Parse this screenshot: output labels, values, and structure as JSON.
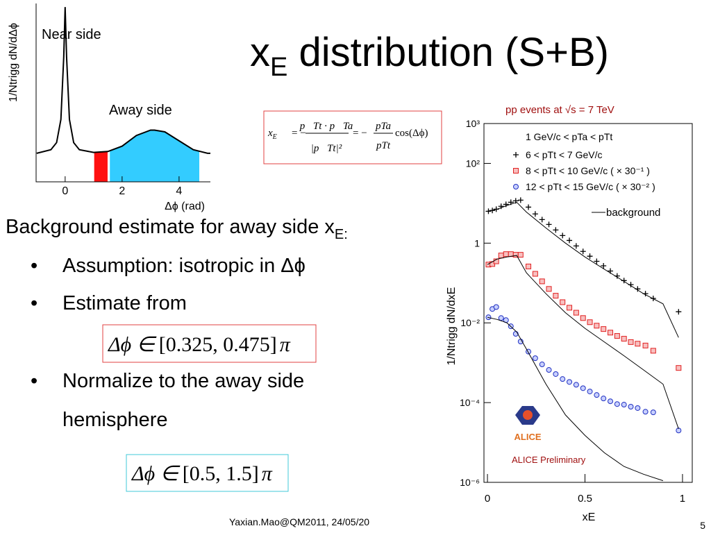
{
  "title": [
    "x",
    "E",
    " distribution (S+B)"
  ],
  "intro": [
    "Background estimate for away side x",
    "E:"
  ],
  "bullets": [
    "Assumption: isotropic in Δϕ",
    "Estimate from",
    "Normalize to the away side",
    "hemisphere"
  ],
  "formula1": {
    "lhs": "x",
    "lhs_sub": "E",
    "eq": "= −",
    "num1": "p⃗Tt · p⃗Ta",
    "den1": "|p⃗Tt|²",
    "num2": "pTa",
    "den2": "pTt",
    "rhs": "cos(Δϕ)"
  },
  "formula2": {
    "lhs": "Δϕ ∈",
    "interval": "[0.325, 0.475]",
    "rhs": "π"
  },
  "formula3": {
    "lhs": "Δϕ ∈",
    "interval": "[0.5, 1.5]",
    "rhs": "π"
  },
  "footer": "Yaxian.Mao@QM2011, 24/05/20",
  "page_number": "5",
  "chart_data": [
    {
      "type": "line",
      "xlabel": "Δϕ (rad)",
      "ylabel": "1/Ntrigg dN/dΔϕ",
      "annotations": [
        "Near side",
        "Away side"
      ],
      "x": [
        -1,
        -0.5,
        -0.3,
        -0.15,
        -0.05,
        0,
        0.05,
        0.15,
        0.3,
        0.5,
        1,
        1.5,
        2,
        2.5,
        3,
        3.14,
        3.5,
        4,
        4.5,
        5,
        5.1
      ],
      "values": [
        0.16,
        0.18,
        0.22,
        0.35,
        0.7,
        0.98,
        0.7,
        0.35,
        0.22,
        0.18,
        0.165,
        0.17,
        0.2,
        0.26,
        0.29,
        0.29,
        0.28,
        0.23,
        0.18,
        0.16,
        0.16
      ],
      "color": "#000000",
      "regions": [
        {
          "range": [
            1.02,
            1.49
          ],
          "color": "#ff1010"
        },
        {
          "range": [
            1.57,
            4.71
          ],
          "color": "#33ccff"
        }
      ],
      "xlim": [
        -1.02,
        5.1
      ],
      "xticks": [
        0,
        2,
        4
      ],
      "ylim": [
        0,
        1
      ]
    },
    {
      "type": "scatter",
      "title": "pp events at √s = 7 TeV",
      "annotation": "ALICE Preliminary",
      "logo_text": "ALICE",
      "legend_title": "1 GeV/c < pTa < pTt",
      "xlabel": "xE",
      "ylabel": "1/Ntrigg dN/dxE",
      "log_y": true,
      "xlim": [
        -0.018,
        1.05
      ],
      "xticks": [
        0,
        0.5,
        1
      ],
      "ylim": [
        1e-06,
        1000
      ],
      "yticks": [
        {
          "value": 1e-06,
          "label": "10⁻⁶"
        },
        {
          "value": 0.0001,
          "label": "10⁻⁴"
        },
        {
          "value": 0.01,
          "label": "10⁻²"
        },
        1,
        {
          "value": 100,
          "label": "10²"
        },
        {
          "value": 1000,
          "label": "10³"
        }
      ],
      "series": [
        {
          "name": "6 < pTt < 7 GeV/c",
          "marker": "cross",
          "color": "#000000",
          "x": [
            0.005,
            0.025,
            0.045,
            0.07,
            0.095,
            0.12,
            0.145,
            0.17,
            0.21,
            0.245,
            0.28,
            0.315,
            0.35,
            0.385,
            0.42,
            0.455,
            0.49,
            0.525,
            0.56,
            0.595,
            0.63,
            0.665,
            0.7,
            0.735,
            0.77,
            0.81,
            0.85,
            0.98
          ],
          "values": [
            6.3,
            6.6,
            7.1,
            8.4,
            9.4,
            10.6,
            11.5,
            12.0,
            8.0,
            5.4,
            3.9,
            2.95,
            2.14,
            1.55,
            1.17,
            0.85,
            0.62,
            0.47,
            0.35,
            0.27,
            0.2,
            0.15,
            0.115,
            0.091,
            0.071,
            0.054,
            0.041,
            0.019
          ]
        },
        {
          "name": "8 < pTt < 10 GeV/c ( × 30⁻¹ )",
          "marker": "square",
          "color": "#e02020",
          "x": [
            0.005,
            0.025,
            0.045,
            0.07,
            0.095,
            0.12,
            0.145,
            0.17,
            0.21,
            0.245,
            0.28,
            0.315,
            0.35,
            0.385,
            0.42,
            0.455,
            0.49,
            0.525,
            0.56,
            0.595,
            0.63,
            0.665,
            0.7,
            0.735,
            0.77,
            0.81,
            0.85,
            0.98
          ],
          "values": [
            0.29,
            0.3,
            0.35,
            0.49,
            0.53,
            0.53,
            0.51,
            0.51,
            0.26,
            0.17,
            0.11,
            0.071,
            0.048,
            0.033,
            0.024,
            0.018,
            0.0132,
            0.0104,
            0.0085,
            0.007,
            0.0057,
            0.0047,
            0.004,
            0.0033,
            0.003,
            0.0027,
            0.002,
            0.00074
          ]
        },
        {
          "name": "12 < pTt < 15 GeV/c ( × 30⁻² )",
          "marker": "circle",
          "color": "#2030c0",
          "x": [
            0.005,
            0.025,
            0.045,
            0.07,
            0.095,
            0.12,
            0.145,
            0.17,
            0.21,
            0.245,
            0.28,
            0.315,
            0.35,
            0.385,
            0.42,
            0.455,
            0.49,
            0.525,
            0.56,
            0.595,
            0.63,
            0.665,
            0.7,
            0.735,
            0.77,
            0.81,
            0.85,
            0.98
          ],
          "values": [
            0.0138,
            0.0223,
            0.025,
            0.0132,
            0.0117,
            0.0082,
            0.0053,
            0.0034,
            0.0019,
            0.0013,
            0.00091,
            0.00066,
            0.00052,
            0.00039,
            0.00033,
            0.00028,
            0.00023,
            0.00019,
            0.000155,
            0.000127,
            0.000108,
            9.2e-05,
            8.9e-05,
            7.9e-05,
            7.3e-05,
            5.9e-05,
            5.7e-05,
            2e-05
          ]
        },
        {
          "name": "background",
          "marker": "line",
          "color": "#000000",
          "x": [
            0,
            0.05,
            0.1,
            0.15,
            0.2,
            0.3,
            0.4,
            0.5,
            0.6,
            0.7,
            0.8,
            0.9,
            0.98
          ],
          "values": [
            6.3,
            7.1,
            8.8,
            10.6,
            6.0,
            2.4,
            1.0,
            0.45,
            0.22,
            0.11,
            0.054,
            0.03,
            0.0043
          ]
        },
        {
          "marker": "line",
          "color": "#000000",
          "x": [
            0,
            0.05,
            0.1,
            0.15,
            0.2,
            0.3,
            0.4,
            0.5,
            0.6,
            0.7,
            0.8,
            0.9,
            0.98
          ],
          "values": [
            0.29,
            0.4,
            0.45,
            0.49,
            0.18,
            0.054,
            0.018,
            0.0073,
            0.0033,
            0.0015,
            0.00066,
            0.00029,
            2.2e-05
          ]
        },
        {
          "marker": "line",
          "color": "#000000",
          "x": [
            0,
            0.05,
            0.1,
            0.15,
            0.2,
            0.3,
            0.4,
            0.5,
            0.6,
            0.7,
            0.8,
            0.9
          ],
          "values": [
            0.0138,
            0.0122,
            0.01,
            0.0059,
            0.0022,
            0.00029,
            4.9e-05,
            1.5e-05,
            5.5e-06,
            2.5e-06,
            1.6e-06,
            1.1e-06
          ]
        }
      ]
    }
  ]
}
